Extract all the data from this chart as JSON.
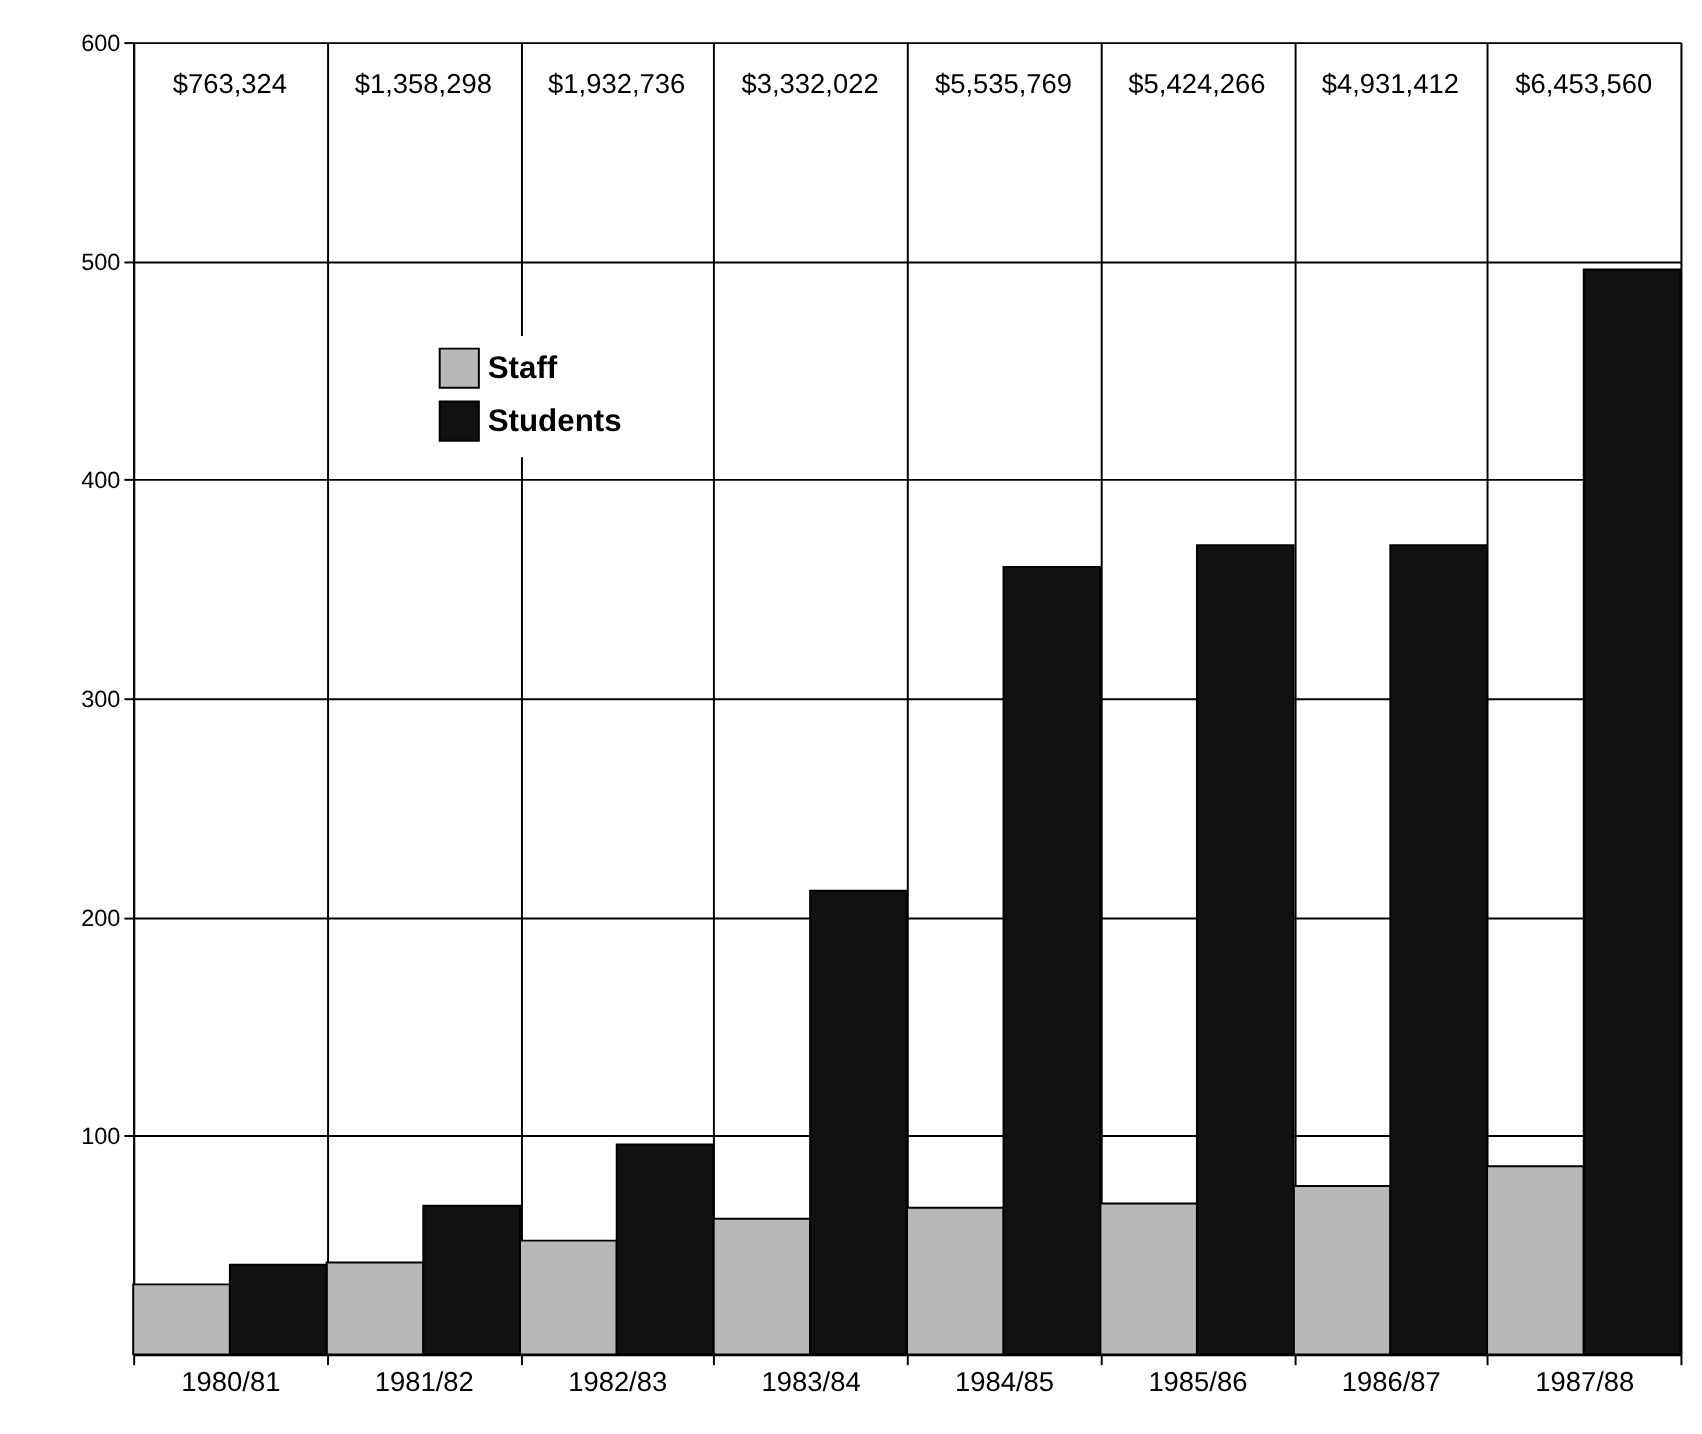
{
  "chart_data": {
    "type": "bar",
    "categories": [
      "1980/81",
      "1981/82",
      "1982/83",
      "1983/84",
      "1984/85",
      "1985/86",
      "1986/87",
      "1987/88"
    ],
    "series": [
      {
        "name": "Staff",
        "color": "#b8b8b8",
        "values": [
          32,
          42,
          52,
          62,
          67,
          69,
          77,
          86
        ]
      },
      {
        "name": "Students",
        "color": "#111111",
        "values": [
          41,
          68,
          96,
          212,
          360,
          370,
          370,
          496
        ]
      }
    ],
    "ylim": [
      0,
      600
    ],
    "yticks": [
      100,
      200,
      300,
      400,
      500,
      600
    ],
    "grid": true,
    "legend": "top left",
    "annotations": [
      "$763,324",
      "$1,358,298",
      "$1,932,736",
      "$3,332,022",
      "$5,535,769",
      "$5,424,266",
      "$4,931,412",
      "$6,453,560"
    ]
  }
}
